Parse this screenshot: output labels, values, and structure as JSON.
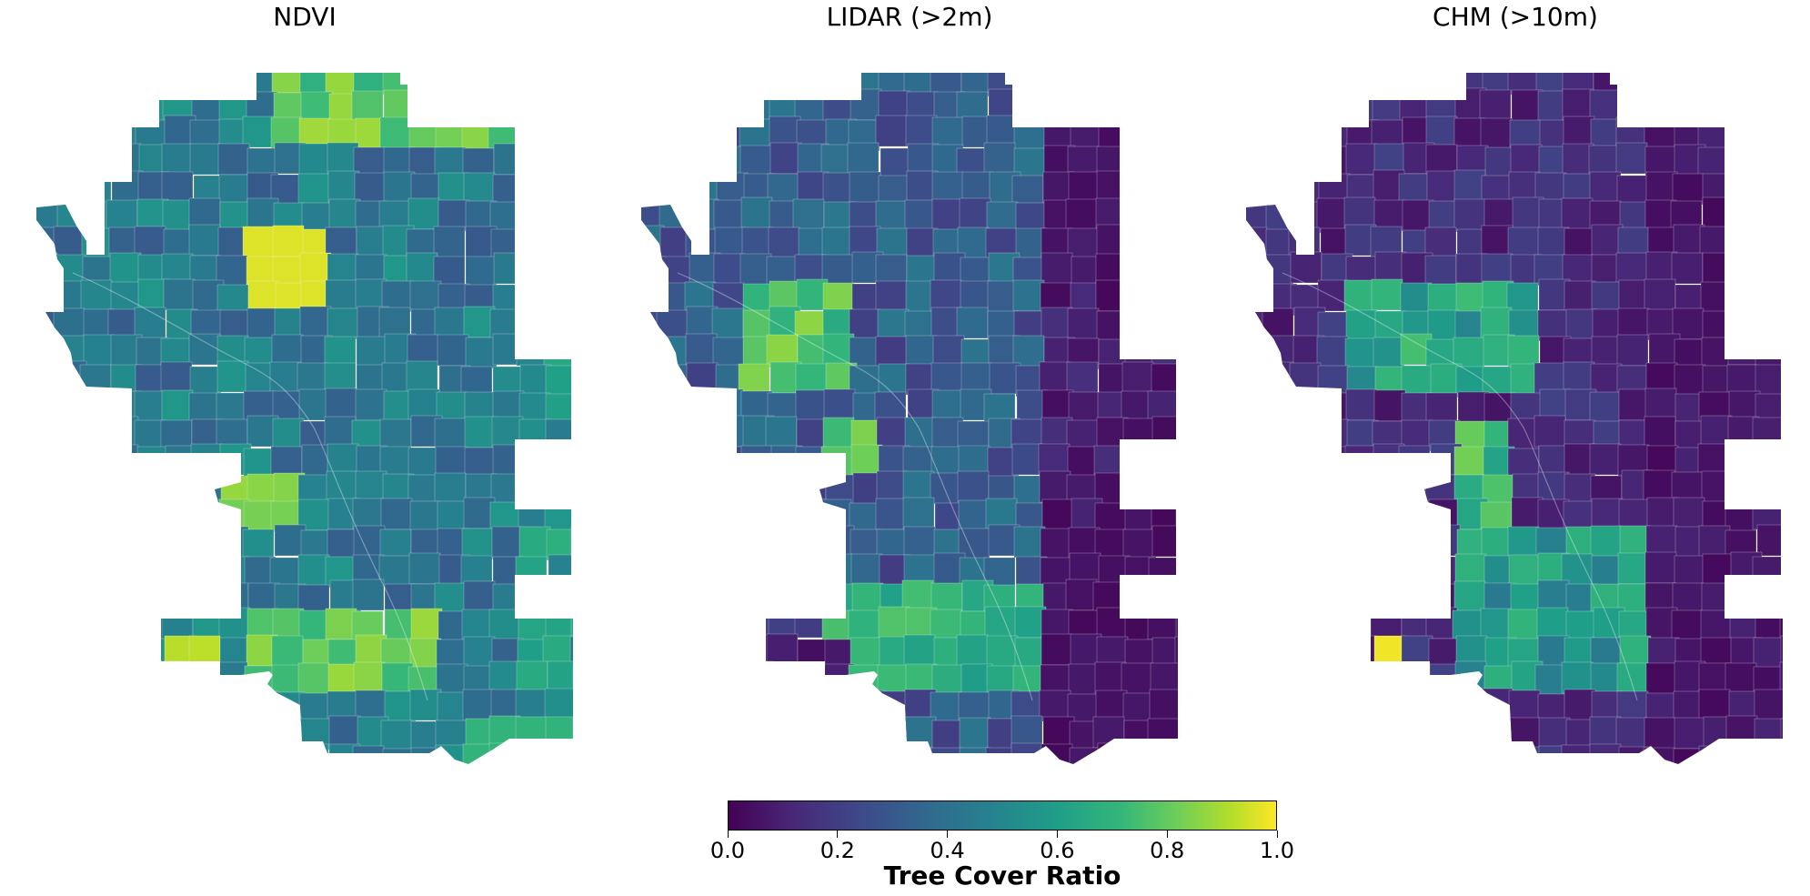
{
  "panels": [
    {
      "title": "NDVI"
    },
    {
      "title": "LIDAR (>2m)"
    },
    {
      "title": "CHM (>10m)"
    }
  ],
  "colorbar": {
    "label": "Tree Cover Ratio",
    "ticks": [
      "0.0",
      "0.2",
      "0.4",
      "0.6",
      "0.8",
      "1.0"
    ],
    "range": [
      0.0,
      1.0
    ],
    "colormap": "viridis"
  },
  "colors": {
    "viridis_stops": [
      "#440154",
      "#482878",
      "#3e4989",
      "#31688e",
      "#26828e",
      "#1f9e89",
      "#35b779",
      "#6ece58",
      "#b5de2b",
      "#fde725"
    ],
    "boundary": "#ffffff",
    "background": "#ffffff"
  }
}
